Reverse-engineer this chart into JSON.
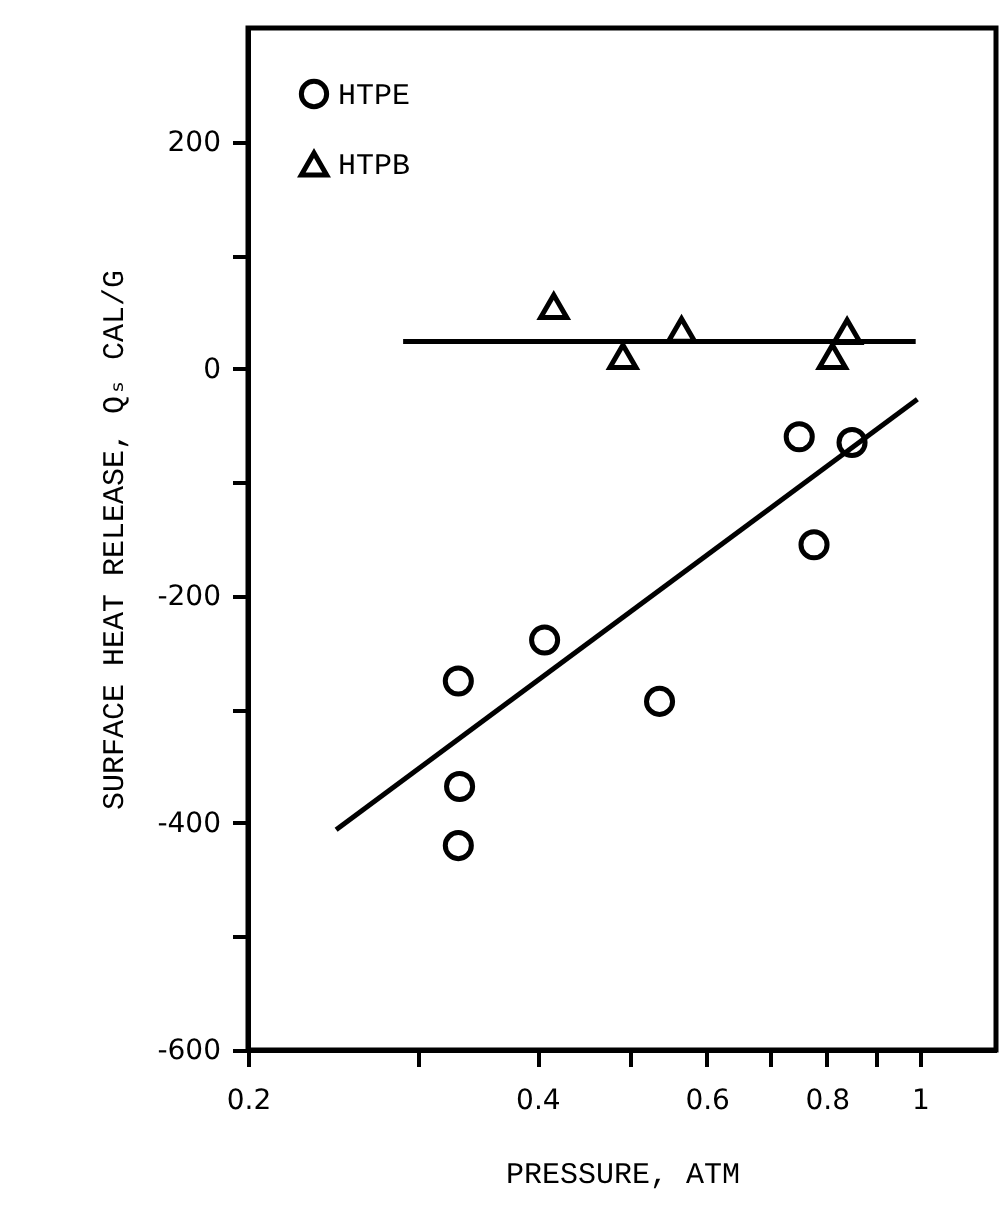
{
  "chart_data": {
    "type": "scatter",
    "xlabel": "PRESSURE, ATM",
    "ylabel": "SURFACE HEAT RELEASE, Qₛ CAL/G",
    "log": "x",
    "xlim": [
      0.2,
      1.2
    ],
    "ylim": [
      -600,
      300
    ],
    "xticks": [
      0.2,
      {
        "value": 0.3,
        "label": null
      },
      0.4,
      {
        "value": 0.5,
        "label": null
      },
      0.6,
      {
        "value": 0.7,
        "label": null
      },
      0.8,
      {
        "value": 0.9,
        "label": null
      },
      1
    ],
    "yticks": [
      -600,
      {
        "value": -500,
        "label": null
      },
      -400,
      {
        "value": -300,
        "label": null
      },
      -200,
      {
        "value": -100,
        "label": null
      },
      0,
      {
        "value": 100,
        "label": null
      },
      200
    ],
    "grid": false,
    "legend": "top left",
    "series": [
      {
        "name": "HTPE",
        "marker": "circle",
        "color": "#000000",
        "x": [
          0.749,
          0.85,
          0.776,
          0.407,
          0.331,
          0.536,
          0.332,
          0.331
        ],
        "values": [
          -60,
          -65,
          -155,
          -239,
          -275,
          -293,
          -368,
          -420
        ]
      },
      {
        "name": "HTPB",
        "marker": "triangle",
        "color": "#000000",
        "x": [
          0.416,
          0.491,
          0.565,
          0.811,
          0.84
        ],
        "values": [
          55,
          11,
          34,
          11,
          33
        ]
      },
      {
        "type": "line",
        "color": "#000000",
        "x": [
          0.247,
          0.994
        ],
        "values": [
          -406,
          -27
        ]
      },
      {
        "type": "line",
        "color": "#000000",
        "x": [
          0.29,
          0.99
        ],
        "values": [
          24,
          24
        ]
      }
    ]
  }
}
